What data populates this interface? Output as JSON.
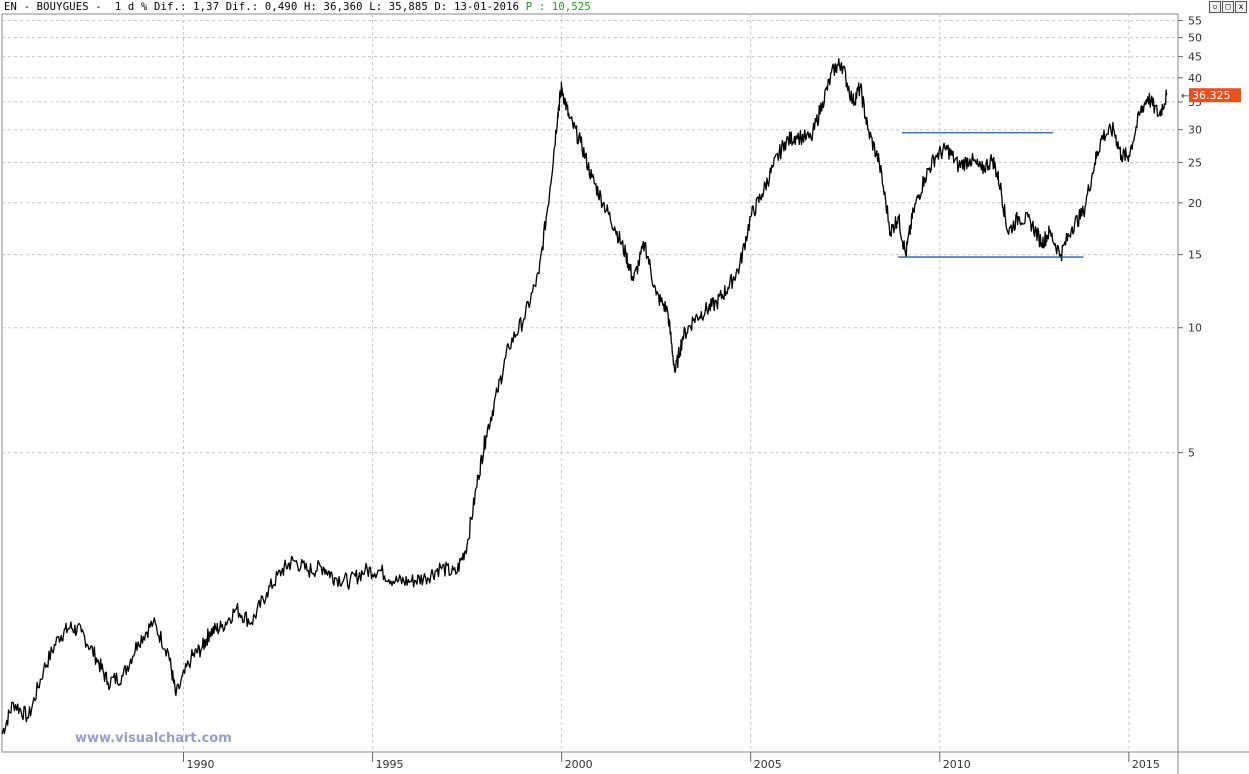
{
  "header": {
    "text": "EN - BOUYGUES -  1 d % Dif.: 1,37 Dif.: 0,490 H: 36,360 L: 35,885 D: 13-01-2016 ",
    "price_label": "P : 10,525"
  },
  "window_buttons": [
    "▫",
    "□",
    "x"
  ],
  "watermark": "www.visualchart.com",
  "colors": {
    "price_line": "#000000",
    "trendline": "#1f5fa8",
    "last_price_bg": "#e8501e",
    "grid": "#c8c8c8"
  },
  "chart_data": {
    "type": "line",
    "scale": "log",
    "title": "",
    "xlabel": "",
    "ylabel": "",
    "x_ticks": [
      "1990",
      "1995",
      "2000",
      "2005",
      "2010",
      "2015"
    ],
    "y_ticks": [
      5,
      10,
      15,
      20,
      25,
      30,
      35,
      40,
      45,
      50,
      55
    ],
    "grid": true,
    "last_price": "36.325",
    "series": [
      {
        "x": [
          1985.2,
          1985.5,
          1985.9,
          1986.3,
          1986.7,
          1987.0,
          1987.3,
          1987.7,
          1988.0,
          1988.4,
          1988.8,
          1989.2,
          1989.6,
          1989.8,
          1990.2,
          1990.5,
          1990.7,
          1991.0,
          1991.4,
          1991.8,
          1992.2,
          1992.6,
          1992.9,
          1993.3,
          1993.7,
          1994.0,
          1994.4,
          1994.8,
          1995.2,
          1995.6,
          1996.0,
          1996.4,
          1996.8,
          1997.2,
          1997.5,
          1997.8,
          1998.0,
          1998.3,
          1998.6,
          1999.0,
          1999.4,
          1999.7,
          1999.9,
          2000.0,
          2000.2,
          2000.5,
          2000.8,
          2001.1,
          2001.4,
          2001.7,
          2001.9,
          2002.2,
          2002.5,
          2002.8,
          2003.0,
          2003.2,
          2003.5,
          2003.8,
          2004.1,
          2004.4,
          2004.7,
          2005.0,
          2005.3,
          2005.6,
          2005.9,
          2006.2,
          2006.6,
          2006.9,
          2007.2,
          2007.4,
          2007.7,
          2007.9,
          2008.1,
          2008.4,
          2008.7,
          2008.9,
          2009.1,
          2009.3,
          2009.6,
          2009.9,
          2010.2,
          2010.5,
          2010.8,
          2011.1,
          2011.4,
          2011.6,
          2011.8,
          2012.1,
          2012.4,
          2012.7,
          2012.9,
          2013.2,
          2013.5,
          2013.8,
          2014.1,
          2014.3,
          2014.6,
          2014.8,
          2015.0,
          2015.3,
          2015.5,
          2015.8,
          2016.0
        ],
        "values": [
          1.05,
          1.25,
          1.15,
          1.5,
          1.8,
          1.9,
          1.85,
          1.6,
          1.4,
          1.45,
          1.75,
          1.95,
          1.65,
          1.3,
          1.6,
          1.7,
          1.85,
          1.9,
          2.1,
          1.95,
          2.3,
          2.6,
          2.75,
          2.6,
          2.65,
          2.5,
          2.45,
          2.6,
          2.6,
          2.45,
          2.45,
          2.5,
          2.65,
          2.55,
          3.0,
          4.4,
          5.5,
          7.0,
          9.0,
          10.5,
          13.5,
          22.0,
          33.0,
          38.0,
          32.0,
          28.0,
          23.0,
          20.0,
          17.5,
          15.0,
          13.0,
          16.0,
          12.0,
          11.0,
          7.8,
          9.5,
          10.5,
          11.0,
          11.5,
          12.5,
          14.0,
          18.5,
          21.0,
          24.5,
          28.0,
          29.0,
          28.5,
          35.0,
          42.0,
          43.5,
          35.0,
          38.0,
          30.0,
          25.0,
          17.0,
          18.5,
          15.0,
          19.0,
          23.0,
          26.0,
          27.0,
          24.5,
          25.5,
          24.0,
          25.5,
          22.0,
          17.0,
          18.5,
          18.0,
          16.0,
          17.0,
          15.0,
          17.5,
          19.0,
          25.0,
          29.0,
          30.0,
          26.0,
          26.0,
          33.0,
          36.0,
          32.5,
          36.3
        ]
      },
      {
        "name": "",
        "x": [
          2009.0,
          2013.0
        ],
        "values": [
          29.5,
          29.5
        ]
      },
      {
        "name": "",
        "x": [
          2008.9,
          2013.8
        ],
        "values": [
          14.8,
          14.8
        ]
      }
    ],
    "xlim": [
      1985.2,
      2016.3
    ],
    "ylim": [
      0.95,
      57
    ]
  }
}
